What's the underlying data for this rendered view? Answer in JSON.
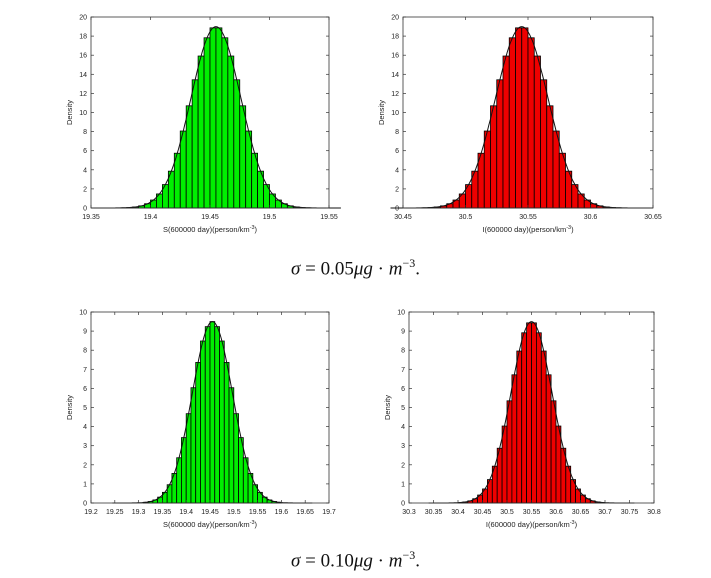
{
  "chart_data": [
    {
      "type": "bar",
      "subtype": "histogram-with-density",
      "title": "",
      "xlabel": "S(600000 day)(person/km",
      "xlabel_sup": "-3",
      "xlabel_end": ")",
      "ylabel": "Density",
      "xlim": [
        19.35,
        19.55
      ],
      "ylim": [
        0,
        20
      ],
      "xticks": [
        "19.35",
        "19.4",
        "19.45",
        "19.5",
        "19.55"
      ],
      "yticks": [
        "0",
        "2",
        "4",
        "6",
        "8",
        "10",
        "12",
        "14",
        "16",
        "18",
        "20"
      ],
      "mean": 19.455,
      "sd": 0.021,
      "bin_width": 0.005,
      "peak_density": 19,
      "color": "#00ee00"
    },
    {
      "type": "bar",
      "subtype": "histogram-with-density",
      "title": "",
      "xlabel": "I(600000 day)(person/km",
      "xlabel_sup": "-3",
      "xlabel_end": ")",
      "ylabel": "Density",
      "xlim": [
        30.45,
        30.65
      ],
      "ylim": [
        0,
        20
      ],
      "xticks": [
        "30.45",
        "30.5",
        "30.55",
        "30.6",
        "30.65"
      ],
      "yticks": [
        "0",
        "2",
        "4",
        "6",
        "8",
        "10",
        "12",
        "14",
        "16",
        "18",
        "20"
      ],
      "mean": 30.545,
      "sd": 0.021,
      "bin_width": 0.005,
      "peak_density": 19,
      "color": "#ee0000"
    },
    {
      "type": "bar",
      "subtype": "histogram-with-density",
      "title": "",
      "xlabel": "S(600000 day)(person/km",
      "xlabel_sup": "-3",
      "xlabel_end": ")",
      "ylabel": "Density",
      "xlim": [
        19.2,
        19.7
      ],
      "ylim": [
        0,
        10
      ],
      "xticks": [
        "19.2",
        "19.25",
        "19.3",
        "19.35",
        "19.4",
        "19.45",
        "19.5",
        "19.55",
        "19.6",
        "19.65",
        "19.7"
      ],
      "yticks": [
        "0",
        "1",
        "2",
        "3",
        "4",
        "5",
        "6",
        "7",
        "8",
        "9",
        "10"
      ],
      "mean": 19.455,
      "sd": 0.042,
      "bin_width": 0.01,
      "peak_density": 9.5,
      "color": "#00ee00"
    },
    {
      "type": "bar",
      "subtype": "histogram-with-density",
      "title": "",
      "xlabel": "I(600000 day)(person/km",
      "xlabel_sup": "-3",
      "xlabel_end": ")",
      "ylabel": "Density",
      "xlim": [
        30.3,
        30.8
      ],
      "ylim": [
        0,
        10
      ],
      "xticks": [
        "30.3",
        "30.35",
        "30.4",
        "30.45",
        "30.5",
        "30.55",
        "30.6",
        "30.65",
        "30.7",
        "30.75",
        "30.8"
      ],
      "yticks": [
        "0",
        "1",
        "2",
        "3",
        "4",
        "5",
        "6",
        "7",
        "8",
        "9",
        "10"
      ],
      "mean": 30.55,
      "sd": 0.042,
      "bin_width": 0.01,
      "peak_density": 9.5,
      "color": "#ee0000"
    }
  ],
  "captions": [
    {
      "sigma": "σ",
      "eq": " = 0.05",
      "mu": "μg",
      "dot": " · ",
      "m": "m",
      "sup": "−3",
      "end": "."
    },
    {
      "sigma": "σ",
      "eq": " = 0.10",
      "mu": "μg",
      "dot": " · ",
      "m": "m",
      "sup": "−3",
      "end": "."
    }
  ]
}
